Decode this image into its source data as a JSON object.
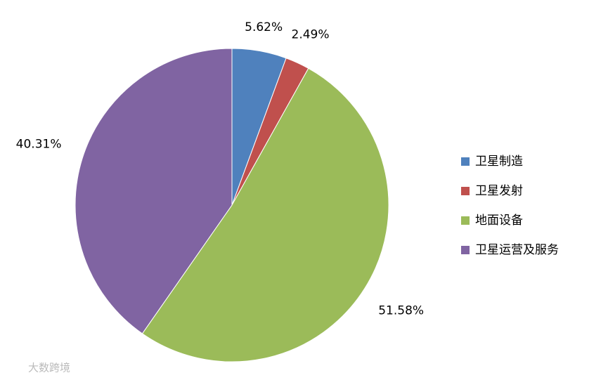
{
  "chart_data": {
    "type": "pie",
    "categories": [
      "卫星制造",
      "卫星发射",
      "地面设备",
      "卫星运营及服务"
    ],
    "values": [
      5.62,
      2.49,
      51.58,
      40.31
    ],
    "value_labels": [
      "5.62%",
      "2.49%",
      "51.58%",
      "40.31%"
    ],
    "colors": [
      "#4f81bd",
      "#c0504d",
      "#9bbb59",
      "#8064a2"
    ],
    "legend": "right",
    "watermark": "大数跨境"
  }
}
